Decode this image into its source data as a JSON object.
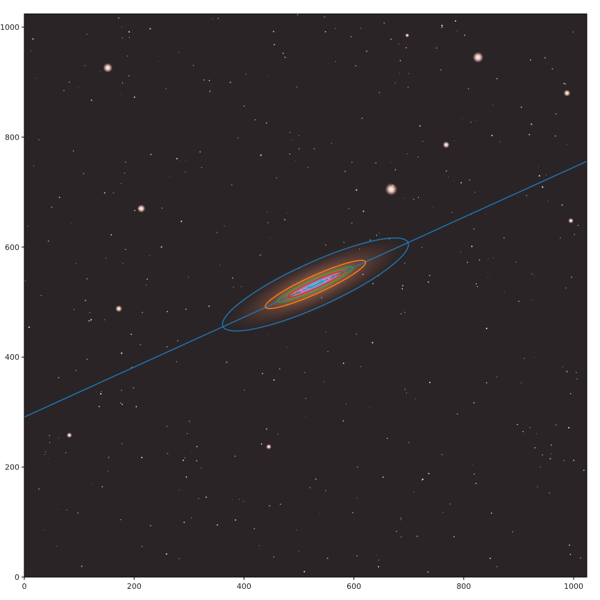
{
  "image": {
    "description_colors": {
      "sky_background": "#2a2426",
      "galaxy_core": "#f3c7a8",
      "galaxy_halo": "#a86a52",
      "star_color": "#ffffff"
    }
  },
  "axes": {
    "x_ticks": [
      0,
      200,
      400,
      600,
      800,
      1000
    ],
    "y_ticks": [
      0,
      200,
      400,
      600,
      800,
      1000
    ],
    "x_range": [
      0,
      1024
    ],
    "y_range": [
      0,
      1024
    ]
  },
  "overlay": {
    "line": {
      "points": [
        [
          0,
          291
        ],
        [
          1024,
          756
        ]
      ],
      "color": "#1f77b4"
    },
    "isophote_ellipses": [
      {
        "cx": 530,
        "cy": 532,
        "a": 185,
        "b": 40,
        "angle_deg": 24.4,
        "color": "#1f77b4"
      },
      {
        "cx": 530,
        "cy": 532,
        "a": 100,
        "b": 16,
        "angle_deg": 24.4,
        "color": "#ff7f0e"
      },
      {
        "cx": 530,
        "cy": 532,
        "a": 75,
        "b": 10,
        "angle_deg": 24.4,
        "color": "#2ca02c"
      },
      {
        "cx": 530,
        "cy": 532,
        "a": 55,
        "b": 7,
        "angle_deg": 24.4,
        "color": "#d62728"
      },
      {
        "cx": 530,
        "cy": 532,
        "a": 40,
        "b": 5,
        "angle_deg": 24.4,
        "color": "#9467bd"
      },
      {
        "cx": 530,
        "cy": 532,
        "a": 28,
        "b": 3.5,
        "angle_deg": 24.4,
        "color": "#e377c2"
      },
      {
        "cx": 530,
        "cy": 532,
        "a": 18,
        "b": 2.5,
        "angle_deg": 24.4,
        "color": "#17becf"
      }
    ]
  },
  "bright_stars": [
    [
      152,
      926
    ],
    [
      826,
      945
    ],
    [
      988,
      880
    ],
    [
      213,
      670
    ],
    [
      668,
      705
    ],
    [
      768,
      786
    ],
    [
      995,
      648
    ],
    [
      172,
      488
    ],
    [
      82,
      258
    ],
    [
      445,
      237
    ],
    [
      697,
      985
    ]
  ]
}
